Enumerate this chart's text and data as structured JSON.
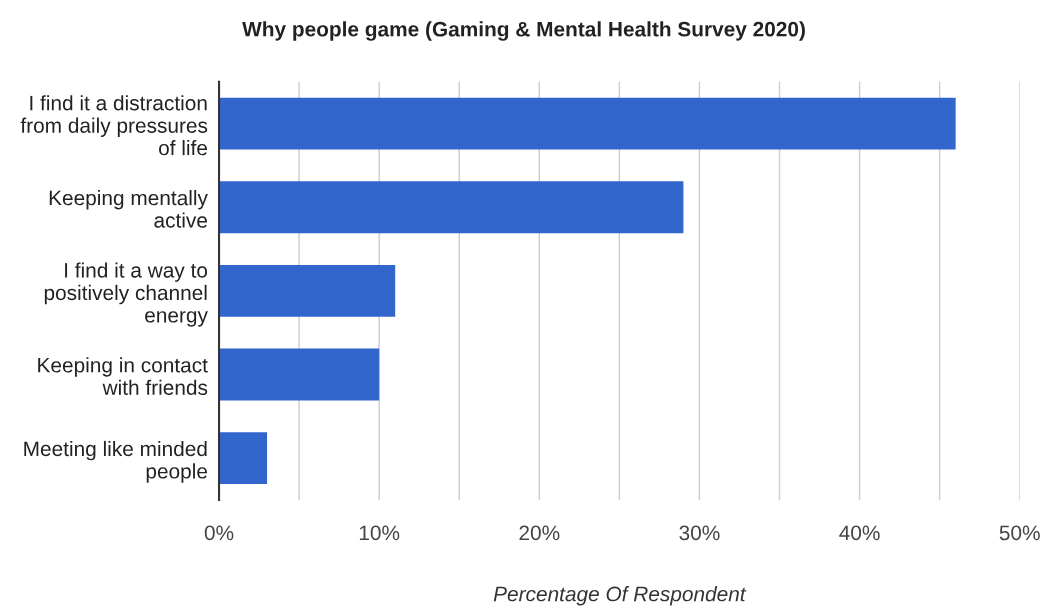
{
  "chart_data": {
    "type": "bar",
    "orientation": "horizontal",
    "title": "Why people game (Gaming & Mental Health Survey 2020)",
    "xlabel": "Percentage Of Respondent",
    "categories": [
      "I find it a distraction\nfrom daily pressures\nof life",
      "Keeping mentally\nactive",
      "I find it a way to\npositively channel\nenergy",
      "Keeping in contact\nwith friends",
      "Meeting like minded\npeople"
    ],
    "values": [
      46,
      29,
      11,
      10,
      3
    ],
    "color": "#3366cc",
    "xlim": [
      0,
      50
    ],
    "xticks": [
      {
        "value": 0,
        "label": "0%"
      },
      {
        "value": 5,
        "label": null
      },
      {
        "value": 10,
        "label": "10%"
      },
      {
        "value": 15,
        "label": null
      },
      {
        "value": 20,
        "label": "20%"
      },
      {
        "value": 25,
        "label": null
      },
      {
        "value": 30,
        "label": "30%"
      },
      {
        "value": 35,
        "label": null
      },
      {
        "value": 40,
        "label": "40%"
      },
      {
        "value": 45,
        "label": null
      },
      {
        "value": 50,
        "label": "50%"
      }
    ],
    "grid": "x"
  }
}
